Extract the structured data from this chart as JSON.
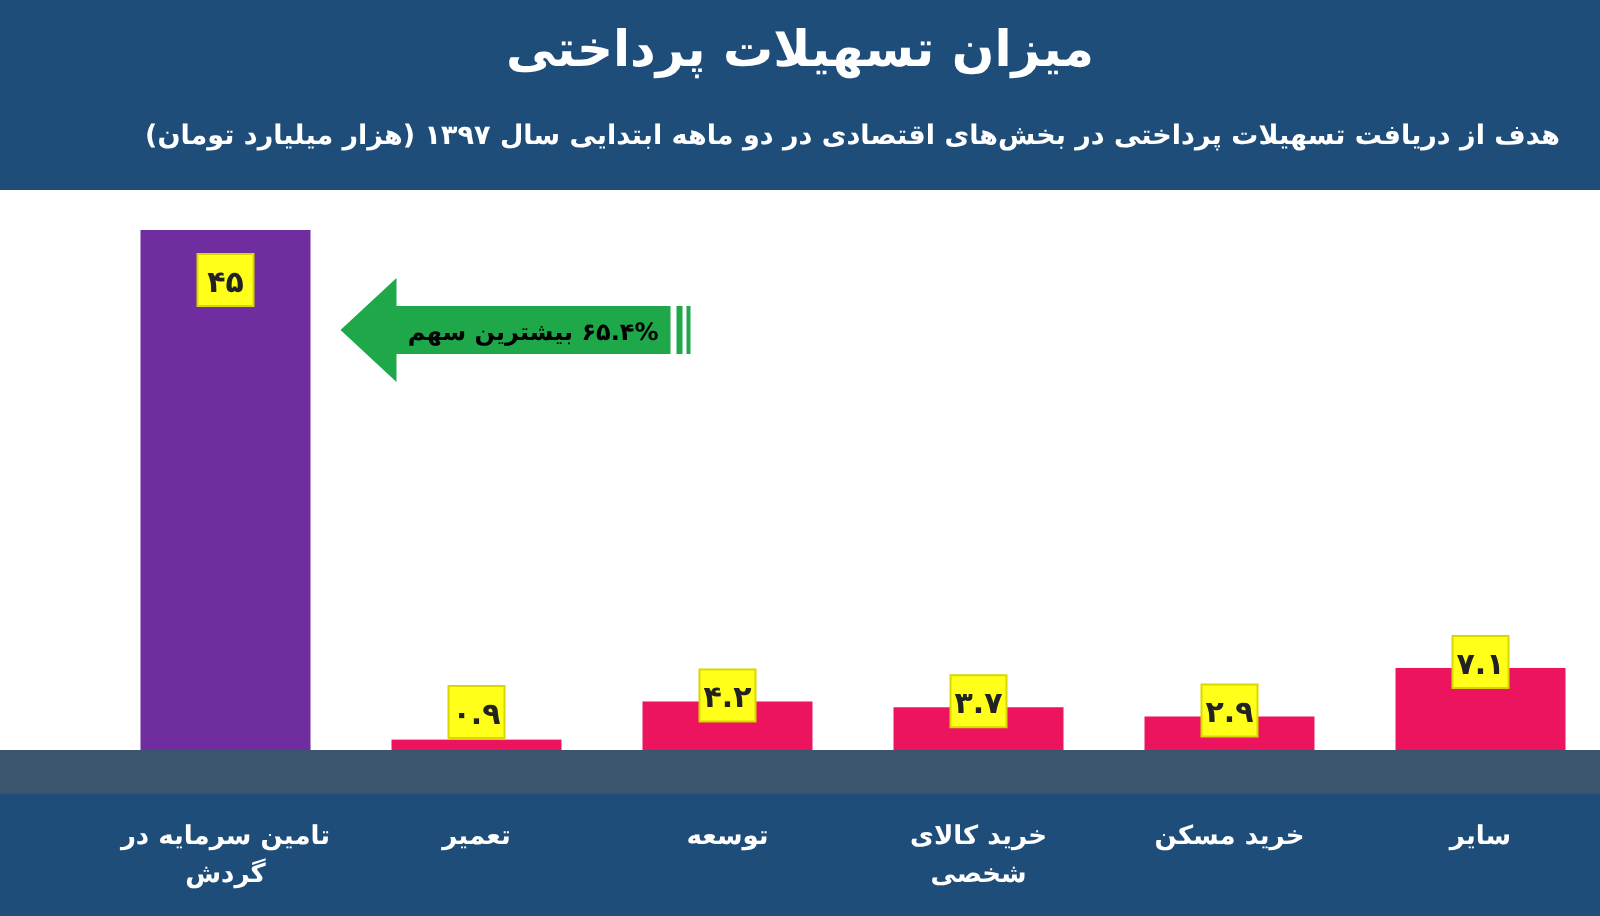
{
  "chart_data": {
    "type": "bar",
    "title": "میزان تسهیلات پرداختی",
    "subtitle": "هدف از دریافت تسهیلات پرداختی در بخش‌های اقتصادی در دو ماهه ابتدایی سال ۱۳۹۷ (هزار میلیارد تومان)",
    "categories": [
      "تامین سرمایه در گردش",
      "تعمیر",
      "توسعه",
      "خرید کالای شخصی",
      "خرید مسکن",
      "سایر"
    ],
    "values": [
      45,
      0.9,
      4.2,
      3.7,
      2.9,
      7.1
    ],
    "colors": [
      "#6f2da0",
      "#ec145e",
      "#ec145e",
      "#ec145e",
      "#ec145e",
      "#ec145e"
    ],
    "value_labels": [
      "۴۵",
      "۰.۹",
      "۴.۲",
      "۳.۷",
      "۲.۹",
      "۷.۱"
    ],
    "annotations": [
      "۶۵.۴% بیشترین سهم"
    ]
  }
}
